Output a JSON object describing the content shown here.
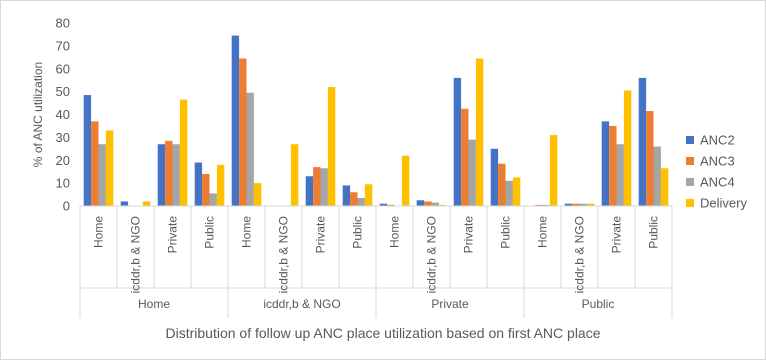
{
  "chart_data": {
    "type": "bar",
    "ylabel": "% of ANC utilization",
    "xlabel": "Distribution of  follow up ANC place utilization  based on first ANC place",
    "ylim": [
      0,
      80
    ],
    "yticks": [
      0,
      10,
      20,
      30,
      40,
      50,
      60,
      70,
      80
    ],
    "grid": false,
    "legend_position": "right",
    "groups": [
      "Home",
      "icddr,b & NGO",
      "Private",
      "Public"
    ],
    "categories": [
      "Home",
      "icddr,b & NGO",
      "Private",
      "Public"
    ],
    "series": [
      {
        "name": "ANC2",
        "color": "#4472C4",
        "values": [
          [
            48.5,
            2,
            27,
            19
          ],
          [
            74.5,
            0,
            13,
            9
          ],
          [
            1,
            2.5,
            56,
            25
          ],
          [
            0,
            1,
            37,
            56
          ]
        ]
      },
      {
        "name": "ANC3",
        "color": "#ED7D31",
        "values": [
          [
            37,
            0,
            28.5,
            14
          ],
          [
            64.5,
            0,
            17,
            6
          ],
          [
            0.5,
            2,
            42.5,
            18.5
          ],
          [
            0.5,
            1,
            35,
            41.5
          ]
        ]
      },
      {
        "name": "ANC4",
        "color": "#A5A5A5",
        "values": [
          [
            27,
            0,
            27,
            5.5
          ],
          [
            49.5,
            0,
            16.5,
            3.5
          ],
          [
            0,
            1.5,
            29,
            11
          ],
          [
            0.5,
            1,
            27,
            26
          ]
        ]
      },
      {
        "name": "Delivery",
        "color": "#FFC000",
        "values": [
          [
            33,
            2,
            46.5,
            18
          ],
          [
            10,
            27,
            52,
            9.5
          ],
          [
            22,
            0.5,
            64.5,
            12.5
          ],
          [
            31,
            1,
            50.5,
            16.5
          ]
        ]
      }
    ]
  }
}
